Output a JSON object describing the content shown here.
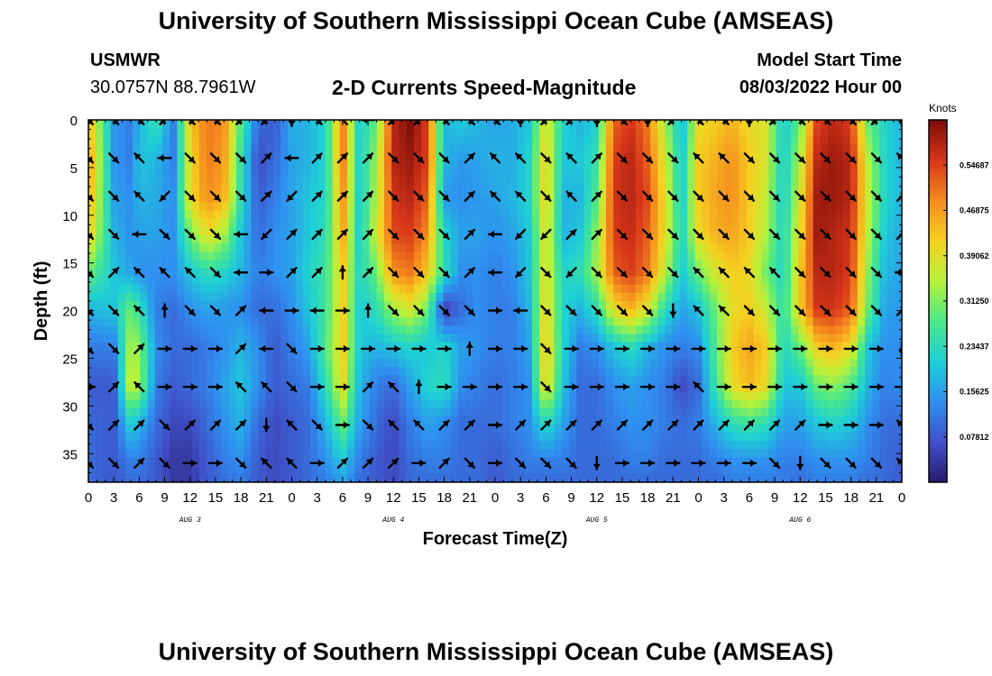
{
  "header": {
    "title": "University of Southern Mississippi Ocean Cube (AMSEAS)",
    "station": "USMWR",
    "coords": "30.0757N  88.7961W",
    "subtitle": "2-D Currents Speed-Magnitude",
    "model_start_label": "Model Start Time",
    "model_start_value": "08/03/2022 Hour 00"
  },
  "footer": {
    "title": "University of Southern Mississippi Ocean Cube (AMSEAS)"
  },
  "chart_data": {
    "type": "heatmap",
    "title": "2-D Currents Speed-Magnitude",
    "xlabel": "Forecast Time(Z)",
    "ylabel": "Depth (ft)",
    "xlim": [
      0,
      96
    ],
    "ylim": [
      38,
      0
    ],
    "x_ticks": [
      {
        "t": 0,
        "label": "0"
      },
      {
        "t": 3,
        "label": "3"
      },
      {
        "t": 6,
        "label": "6"
      },
      {
        "t": 9,
        "label": "9"
      },
      {
        "t": 12,
        "label": "12"
      },
      {
        "t": 15,
        "label": "15"
      },
      {
        "t": 18,
        "label": "18"
      },
      {
        "t": 21,
        "label": "21"
      },
      {
        "t": 24,
        "label": "0"
      },
      {
        "t": 27,
        "label": "3"
      },
      {
        "t": 30,
        "label": "6"
      },
      {
        "t": 33,
        "label": "9"
      },
      {
        "t": 36,
        "label": "12"
      },
      {
        "t": 39,
        "label": "15"
      },
      {
        "t": 42,
        "label": "18"
      },
      {
        "t": 45,
        "label": "21"
      },
      {
        "t": 48,
        "label": "0"
      },
      {
        "t": 51,
        "label": "3"
      },
      {
        "t": 54,
        "label": "6"
      },
      {
        "t": 57,
        "label": "9"
      },
      {
        "t": 60,
        "label": "12"
      },
      {
        "t": 63,
        "label": "15"
      },
      {
        "t": 66,
        "label": "18"
      },
      {
        "t": 69,
        "label": "21"
      },
      {
        "t": 72,
        "label": "0"
      },
      {
        "t": 75,
        "label": "3"
      },
      {
        "t": 78,
        "label": "6"
      },
      {
        "t": 81,
        "label": "9"
      },
      {
        "t": 84,
        "label": "12"
      },
      {
        "t": 87,
        "label": "15"
      },
      {
        "t": 90,
        "label": "18"
      },
      {
        "t": 93,
        "label": "21"
      },
      {
        "t": 96,
        "label": "0"
      }
    ],
    "day_labels": [
      {
        "t": 12,
        "label": "AUG 3"
      },
      {
        "t": 36,
        "label": "AUG 4"
      },
      {
        "t": 60,
        "label": "AUG 5"
      },
      {
        "t": 84,
        "label": "AUG 6"
      }
    ],
    "y_ticks": [
      {
        "d": 0,
        "label": "0"
      },
      {
        "d": 5,
        "label": "5"
      },
      {
        "d": 10,
        "label": "10"
      },
      {
        "d": 15,
        "label": "15"
      },
      {
        "d": 20,
        "label": "20"
      },
      {
        "d": 25,
        "label": "25"
      },
      {
        "d": 30,
        "label": "30"
      },
      {
        "d": 35,
        "label": "35"
      }
    ],
    "colorbar": {
      "units": "Knots",
      "range": [
        0,
        0.625
      ],
      "colors": [
        "#2a1a6e",
        "#3f51c8",
        "#2f8ff0",
        "#1ecfd6",
        "#4ae88a",
        "#b6f23a",
        "#f5d020",
        "#f58a1e",
        "#d7361a",
        "#7a0c08"
      ],
      "ticks": [
        {
          "v": 0.07812,
          "label": "0.07812"
        },
        {
          "v": 0.15625,
          "label": "0.15625"
        },
        {
          "v": 0.23437,
          "label": "0.23437"
        },
        {
          "v": 0.3125,
          "label": "0.31250"
        },
        {
          "v": 0.39062,
          "label": "0.39062"
        },
        {
          "v": 0.46875,
          "label": "0.46875"
        },
        {
          "v": 0.54687,
          "label": "0.54687"
        }
      ]
    },
    "depths": [
      0.5,
      4.3,
      8.2,
      12.0,
      16.0,
      19.8,
      23.8,
      27.8,
      31.8,
      35.8,
      38.0
    ],
    "times": [
      0,
      3,
      5,
      6,
      8,
      10,
      12,
      14,
      16,
      18,
      20,
      22,
      24,
      26,
      28,
      30,
      32,
      34,
      36,
      38,
      40,
      42,
      44,
      46,
      48,
      50,
      52,
      54,
      56,
      58,
      60,
      62,
      64,
      66,
      68,
      70,
      72,
      74,
      76,
      78,
      80,
      82,
      84,
      86,
      88,
      90,
      92,
      94,
      96
    ],
    "speed_knots": [
      [
        0.45,
        0.15,
        0.12,
        0.18,
        0.25,
        0.12,
        0.42,
        0.5,
        0.48,
        0.28,
        0.1,
        0.08,
        0.17,
        0.18,
        0.22,
        0.5,
        0.2,
        0.3,
        0.58,
        0.62,
        0.55,
        0.18,
        0.2,
        0.18,
        0.16,
        0.17,
        0.2,
        0.4,
        0.22,
        0.18,
        0.22,
        0.52,
        0.56,
        0.5,
        0.35,
        0.18,
        0.4,
        0.42,
        0.45,
        0.4,
        0.38,
        0.2,
        0.3,
        0.55,
        0.58,
        0.55,
        0.3,
        0.22,
        0.18
      ],
      [
        0.48,
        0.15,
        0.12,
        0.2,
        0.18,
        0.12,
        0.4,
        0.5,
        0.47,
        0.25,
        0.06,
        0.1,
        0.16,
        0.18,
        0.22,
        0.5,
        0.2,
        0.34,
        0.58,
        0.6,
        0.55,
        0.18,
        0.15,
        0.16,
        0.18,
        0.17,
        0.22,
        0.42,
        0.2,
        0.2,
        0.25,
        0.55,
        0.58,
        0.52,
        0.38,
        0.2,
        0.42,
        0.45,
        0.48,
        0.42,
        0.38,
        0.2,
        0.35,
        0.58,
        0.6,
        0.58,
        0.35,
        0.22,
        0.18
      ],
      [
        0.46,
        0.16,
        0.14,
        0.18,
        0.17,
        0.14,
        0.4,
        0.48,
        0.45,
        0.24,
        0.08,
        0.12,
        0.16,
        0.2,
        0.22,
        0.48,
        0.2,
        0.35,
        0.56,
        0.58,
        0.52,
        0.15,
        0.14,
        0.15,
        0.16,
        0.18,
        0.22,
        0.42,
        0.18,
        0.18,
        0.28,
        0.56,
        0.58,
        0.54,
        0.4,
        0.2,
        0.42,
        0.46,
        0.48,
        0.42,
        0.36,
        0.2,
        0.38,
        0.6,
        0.6,
        0.58,
        0.36,
        0.22,
        0.18
      ],
      [
        0.42,
        0.18,
        0.14,
        0.16,
        0.16,
        0.14,
        0.3,
        0.4,
        0.34,
        0.2,
        0.1,
        0.14,
        0.16,
        0.2,
        0.24,
        0.46,
        0.2,
        0.38,
        0.54,
        0.55,
        0.48,
        0.22,
        0.16,
        0.16,
        0.14,
        0.16,
        0.2,
        0.4,
        0.18,
        0.2,
        0.32,
        0.55,
        0.57,
        0.52,
        0.4,
        0.22,
        0.4,
        0.45,
        0.46,
        0.42,
        0.34,
        0.22,
        0.4,
        0.6,
        0.58,
        0.56,
        0.35,
        0.2,
        0.17
      ],
      [
        0.3,
        0.2,
        0.16,
        0.14,
        0.14,
        0.14,
        0.2,
        0.24,
        0.22,
        0.18,
        0.12,
        0.14,
        0.16,
        0.22,
        0.26,
        0.42,
        0.22,
        0.3,
        0.48,
        0.5,
        0.42,
        0.24,
        0.14,
        0.14,
        0.12,
        0.14,
        0.2,
        0.4,
        0.22,
        0.24,
        0.34,
        0.52,
        0.55,
        0.5,
        0.36,
        0.2,
        0.3,
        0.38,
        0.42,
        0.4,
        0.3,
        0.22,
        0.42,
        0.58,
        0.58,
        0.55,
        0.32,
        0.18,
        0.16
      ],
      [
        0.18,
        0.2,
        0.3,
        0.25,
        0.12,
        0.1,
        0.14,
        0.16,
        0.15,
        0.14,
        0.1,
        0.1,
        0.14,
        0.2,
        0.26,
        0.42,
        0.2,
        0.24,
        0.34,
        0.38,
        0.3,
        0.04,
        0.1,
        0.14,
        0.12,
        0.12,
        0.18,
        0.42,
        0.22,
        0.18,
        0.24,
        0.4,
        0.45,
        0.38,
        0.24,
        0.16,
        0.2,
        0.3,
        0.4,
        0.42,
        0.36,
        0.24,
        0.42,
        0.56,
        0.56,
        0.52,
        0.3,
        0.16,
        0.15
      ],
      [
        0.12,
        0.12,
        0.35,
        0.32,
        0.14,
        0.1,
        0.1,
        0.12,
        0.14,
        0.18,
        0.14,
        0.08,
        0.12,
        0.16,
        0.28,
        0.42,
        0.2,
        0.18,
        0.2,
        0.22,
        0.2,
        0.22,
        0.16,
        0.14,
        0.12,
        0.12,
        0.16,
        0.44,
        0.22,
        0.12,
        0.14,
        0.2,
        0.24,
        0.18,
        0.14,
        0.12,
        0.14,
        0.28,
        0.42,
        0.46,
        0.42,
        0.22,
        0.3,
        0.42,
        0.45,
        0.4,
        0.2,
        0.14,
        0.14
      ],
      [
        0.08,
        0.08,
        0.38,
        0.34,
        0.12,
        0.08,
        0.1,
        0.12,
        0.16,
        0.2,
        0.14,
        0.08,
        0.1,
        0.12,
        0.24,
        0.4,
        0.18,
        0.12,
        0.1,
        0.16,
        0.22,
        0.24,
        0.14,
        0.12,
        0.1,
        0.12,
        0.14,
        0.42,
        0.2,
        0.1,
        0.1,
        0.14,
        0.16,
        0.14,
        0.12,
        0.06,
        0.1,
        0.26,
        0.4,
        0.44,
        0.4,
        0.2,
        0.2,
        0.3,
        0.32,
        0.28,
        0.18,
        0.12,
        0.14
      ],
      [
        0.1,
        0.08,
        0.22,
        0.18,
        0.1,
        0.06,
        0.06,
        0.1,
        0.14,
        0.18,
        0.1,
        0.06,
        0.08,
        0.1,
        0.18,
        0.3,
        0.16,
        0.1,
        0.06,
        0.12,
        0.16,
        0.14,
        0.1,
        0.1,
        0.1,
        0.12,
        0.14,
        0.24,
        0.16,
        0.1,
        0.1,
        0.12,
        0.14,
        0.14,
        0.12,
        0.1,
        0.12,
        0.18,
        0.24,
        0.26,
        0.24,
        0.16,
        0.16,
        0.2,
        0.22,
        0.2,
        0.14,
        0.1,
        0.1
      ],
      [
        0.1,
        0.08,
        0.12,
        0.12,
        0.08,
        0.04,
        0.04,
        0.08,
        0.12,
        0.14,
        0.08,
        0.06,
        0.08,
        0.1,
        0.14,
        0.2,
        0.12,
        0.08,
        0.06,
        0.1,
        0.12,
        0.12,
        0.1,
        0.1,
        0.08,
        0.1,
        0.12,
        0.12,
        0.12,
        0.1,
        0.1,
        0.1,
        0.12,
        0.12,
        0.1,
        0.1,
        0.1,
        0.12,
        0.14,
        0.14,
        0.14,
        0.12,
        0.12,
        0.14,
        0.14,
        0.14,
        0.12,
        0.1,
        0.08
      ],
      [
        0.1,
        0.08,
        0.1,
        0.1,
        0.08,
        0.04,
        0.04,
        0.08,
        0.1,
        0.12,
        0.08,
        0.06,
        0.08,
        0.1,
        0.12,
        0.16,
        0.1,
        0.08,
        0.06,
        0.1,
        0.1,
        0.1,
        0.1,
        0.1,
        0.08,
        0.1,
        0.1,
        0.1,
        0.1,
        0.1,
        0.1,
        0.1,
        0.1,
        0.1,
        0.1,
        0.1,
        0.1,
        0.1,
        0.12,
        0.12,
        0.12,
        0.12,
        0.1,
        0.12,
        0.12,
        0.12,
        0.1,
        0.1,
        0.08
      ]
    ],
    "vector_depths": [
      0,
      4,
      8,
      12,
      16,
      20,
      24,
      28,
      32,
      36
    ],
    "vector_times": [
      0,
      3,
      6,
      9,
      12,
      15,
      18,
      21,
      24,
      27,
      30,
      33,
      36,
      39,
      42,
      45,
      48,
      51,
      54,
      57,
      60,
      63,
      66,
      69,
      72,
      75,
      78,
      81,
      84,
      87,
      90,
      93,
      96
    ],
    "vector_directions_deg": [
      [
        135,
        135,
        135,
        225,
        135,
        135,
        225,
        225,
        180,
        135,
        315,
        270,
        225,
        225,
        135,
        135,
        135,
        180,
        225,
        225,
        180,
        135,
        180,
        225,
        135,
        135,
        180,
        225,
        135,
        135,
        135,
        225,
        180
      ],
      [
        135,
        135,
        315,
        270,
        135,
        135,
        135,
        45,
        270,
        45,
        45,
        45,
        135,
        135,
        135,
        45,
        315,
        315,
        135,
        315,
        45,
        135,
        135,
        135,
        315,
        315,
        135,
        135,
        135,
        135,
        135,
        135,
        315
      ],
      [
        135,
        135,
        315,
        225,
        135,
        135,
        135,
        45,
        225,
        45,
        45,
        45,
        135,
        135,
        135,
        45,
        315,
        315,
        135,
        315,
        45,
        135,
        135,
        135,
        135,
        135,
        135,
        135,
        135,
        135,
        135,
        135,
        45
      ],
      [
        135,
        135,
        270,
        135,
        135,
        135,
        270,
        225,
        45,
        45,
        45,
        45,
        135,
        135,
        135,
        45,
        270,
        225,
        225,
        45,
        45,
        135,
        135,
        135,
        135,
        135,
        135,
        135,
        135,
        135,
        135,
        135,
        45
      ],
      [
        135,
        45,
        315,
        315,
        315,
        135,
        270,
        90,
        45,
        45,
        0,
        45,
        135,
        135,
        135,
        45,
        270,
        225,
        135,
        225,
        135,
        135,
        135,
        135,
        315,
        315,
        315,
        315,
        135,
        135,
        135,
        135,
        270
      ],
      [
        135,
        135,
        315,
        0,
        135,
        135,
        45,
        270,
        90,
        270,
        90,
        0,
        135,
        135,
        135,
        135,
        90,
        270,
        135,
        135,
        135,
        135,
        135,
        180,
        315,
        315,
        135,
        135,
        135,
        135,
        135,
        135,
        45
      ],
      [
        135,
        135,
        45,
        90,
        90,
        90,
        45,
        270,
        135,
        90,
        90,
        90,
        90,
        90,
        90,
        0,
        90,
        90,
        135,
        90,
        90,
        90,
        90,
        90,
        90,
        90,
        90,
        90,
        90,
        90,
        90,
        90,
        180
      ],
      [
        90,
        45,
        315,
        90,
        90,
        90,
        315,
        315,
        135,
        90,
        90,
        45,
        315,
        0,
        90,
        90,
        90,
        90,
        135,
        90,
        90,
        90,
        90,
        90,
        315,
        90,
        90,
        90,
        90,
        90,
        90,
        90,
        90
      ],
      [
        135,
        45,
        45,
        135,
        45,
        45,
        45,
        180,
        315,
        135,
        90,
        135,
        315,
        315,
        45,
        45,
        90,
        45,
        45,
        45,
        45,
        45,
        45,
        45,
        45,
        45,
        45,
        45,
        45,
        90,
        90,
        90,
        315
      ],
      [
        135,
        135,
        45,
        135,
        90,
        90,
        135,
        315,
        315,
        90,
        45,
        45,
        45,
        90,
        45,
        135,
        90,
        135,
        135,
        135,
        180,
        90,
        90,
        90,
        90,
        90,
        90,
        135,
        180,
        135,
        135,
        135,
        315
      ]
    ]
  }
}
